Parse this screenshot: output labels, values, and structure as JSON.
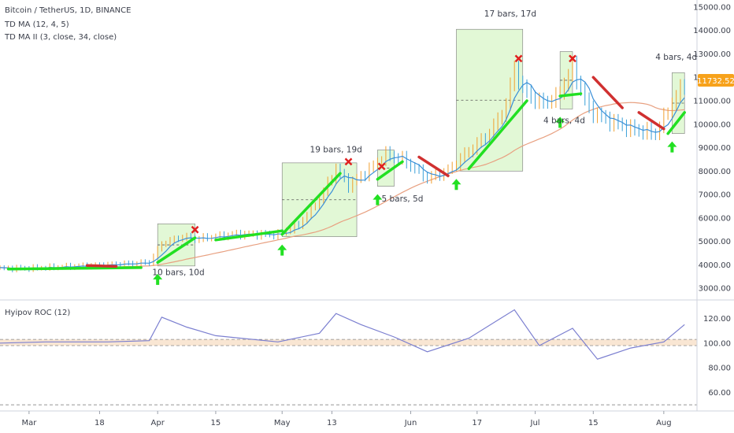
{
  "header": {
    "symbol": "Bitcoin / TetherUS, 1D, BINANCE",
    "indicator1": "TD MA (12, 4, 5)",
    "indicator2": "TD MA II (3, close, 34, close)",
    "lower_indicator": "Hyipov ROC (12)"
  },
  "colors": {
    "up_candle": "#f0a030",
    "down_candle": "#3aa0d8",
    "td_ma_up": "#22e022",
    "td_ma_down": "#d03030",
    "price_ma": "#3a8fd8",
    "slow_ma": "#e8a080",
    "box_fill": "#d8f5c8",
    "price_badge": "#f7a21b",
    "roc_line": "#7b7fd0",
    "roc_band": "#f6dcc0",
    "arrow_up": "#22e022",
    "sell_x": "#e02020"
  },
  "price_badge": "11732.52",
  "chart_data": [
    {
      "type": "line",
      "title": "Bitcoin / TetherUS, 1D, BINANCE",
      "x_axis": {
        "start": "2019-02-22",
        "end": "2019-08-09",
        "tick_labels": [
          "Mar",
          "18",
          "Apr",
          "15",
          "May",
          "13",
          "Jun",
          "17",
          "Jul",
          "15",
          "Aug"
        ],
        "tick_dates": [
          "2019-03-01",
          "2019-03-18",
          "2019-04-01",
          "2019-04-15",
          "2019-05-01",
          "2019-05-13",
          "2019-06-01",
          "2019-06-17",
          "2019-07-01",
          "2019-07-15",
          "2019-08-01"
        ]
      },
      "y_axis": {
        "range": [
          2500,
          15300
        ],
        "tick_labels": [
          "3000.00",
          "4000.00",
          "5000.00",
          "6000.00",
          "7000.00",
          "8000.00",
          "9000.00",
          "10000.00",
          "11000.00",
          "12000.00",
          "13000.00",
          "14000.00",
          "15000.00"
        ],
        "tick_values": [
          3000,
          4000,
          5000,
          6000,
          7000,
          8000,
          9000,
          10000,
          11000,
          12000,
          13000,
          14000,
          15000
        ]
      },
      "grid": false,
      "price_series": {
        "name": "Bitcoin / TetherUS",
        "x": [
          "2019-02-22",
          "2019-03-01",
          "2019-03-10",
          "2019-03-20",
          "2019-03-30",
          "2019-04-02",
          "2019-04-07",
          "2019-04-10",
          "2019-04-20",
          "2019-04-30",
          "2019-05-05",
          "2019-05-10",
          "2019-05-14",
          "2019-05-17",
          "2019-05-21",
          "2019-05-26",
          "2019-05-30",
          "2019-06-05",
          "2019-06-10",
          "2019-06-14",
          "2019-06-20",
          "2019-06-24",
          "2019-06-26",
          "2019-06-28",
          "2019-07-02",
          "2019-07-06",
          "2019-07-10",
          "2019-07-14",
          "2019-07-18",
          "2019-07-24",
          "2019-07-30",
          "2019-08-03",
          "2019-08-06"
        ],
        "values": [
          3850,
          3850,
          3920,
          4000,
          4100,
          4900,
          5200,
          5100,
          5300,
          5300,
          5700,
          6800,
          8100,
          7400,
          7900,
          8700,
          8500,
          7700,
          8000,
          8700,
          9600,
          10800,
          12400,
          11500,
          10900,
          11100,
          12400,
          10600,
          10200,
          9800,
          9600,
          10900,
          11732
        ]
      },
      "td_ma_up_segments": [
        {
          "x": [
            "2019-02-24",
            "2019-03-28"
          ],
          "values": [
            3820,
            3880
          ]
        },
        {
          "x": [
            "2019-04-01",
            "2019-04-10"
          ],
          "values": [
            4100,
            5150
          ]
        },
        {
          "x": [
            "2019-04-15",
            "2019-05-01"
          ],
          "values": [
            5060,
            5450
          ]
        },
        {
          "x": [
            "2019-05-01",
            "2019-05-15"
          ],
          "values": [
            5300,
            7900
          ]
        },
        {
          "x": [
            "2019-05-24",
            "2019-05-30"
          ],
          "values": [
            7650,
            8400
          ]
        },
        {
          "x": [
            "2019-06-15",
            "2019-06-29"
          ],
          "values": [
            8100,
            11000
          ]
        },
        {
          "x": [
            "2019-07-07",
            "2019-07-12"
          ],
          "values": [
            11200,
            11300
          ]
        },
        {
          "x": [
            "2019-08-02",
            "2019-08-06"
          ],
          "values": [
            9600,
            10500
          ]
        }
      ],
      "td_ma_down_segments": [
        {
          "x": [
            "2019-03-15",
            "2019-03-22"
          ],
          "values": [
            3970,
            3930
          ]
        },
        {
          "x": [
            "2019-06-03",
            "2019-06-10"
          ],
          "values": [
            8600,
            7800
          ]
        },
        {
          "x": [
            "2019-07-15",
            "2019-07-22"
          ],
          "values": [
            12000,
            10700
          ]
        },
        {
          "x": [
            "2019-07-26",
            "2019-08-01"
          ],
          "values": [
            10500,
            9800
          ]
        }
      ],
      "annotations": [
        {
          "text": "10 bars, 10d",
          "x": "2019-04-06",
          "y": 3550
        },
        {
          "text": "19 bars, 19d",
          "x": "2019-05-14",
          "y": 8800
        },
        {
          "text": "5 bars, 5d",
          "x": "2019-05-30",
          "y": 6700
        },
        {
          "text": "17 bars, 17d",
          "x": "2019-06-25",
          "y": 14600
        },
        {
          "text": "4 bars, 4d",
          "x": "2019-07-08",
          "y": 10050
        },
        {
          "text": "4 bars, 4d",
          "x": "2019-08-04",
          "y": 12750
        }
      ],
      "boxes": [
        {
          "x": [
            "2019-04-01",
            "2019-04-10"
          ],
          "y": [
            3950,
            5750
          ]
        },
        {
          "x": [
            "2019-05-01",
            "2019-05-19"
          ],
          "y": [
            5200,
            8350
          ]
        },
        {
          "x": [
            "2019-05-24",
            "2019-05-28"
          ],
          "y": [
            7350,
            8900
          ]
        },
        {
          "x": [
            "2019-06-12",
            "2019-06-28"
          ],
          "y": [
            8000,
            14050
          ]
        },
        {
          "x": [
            "2019-07-07",
            "2019-07-10"
          ],
          "y": [
            10650,
            13100
          ]
        },
        {
          "x": [
            "2019-08-03",
            "2019-08-06"
          ],
          "y": [
            9600,
            12200
          ]
        }
      ],
      "buy_arrows": [
        "2019-04-01",
        "2019-05-01",
        "2019-05-24",
        "2019-06-12",
        "2019-07-07",
        "2019-08-03"
      ],
      "sell_marks": [
        {
          "x": "2019-04-10",
          "y": 5500
        },
        {
          "x": "2019-05-17",
          "y": 8400
        },
        {
          "x": "2019-05-25",
          "y": 8200
        },
        {
          "x": "2019-06-27",
          "y": 12800
        },
        {
          "x": "2019-07-10",
          "y": 12800
        }
      ]
    },
    {
      "type": "line",
      "title": "Hyipov ROC (12)",
      "y_axis": {
        "range": [
          45,
          135
        ],
        "tick_labels": [
          "60.00",
          "80.00",
          "100.00",
          "120.00"
        ],
        "tick_values": [
          60,
          80,
          100,
          120
        ]
      },
      "band": [
        98,
        103
      ],
      "lower_dashed_level": 50,
      "roc_series": {
        "x": [
          "2019-02-22",
          "2019-03-05",
          "2019-03-20",
          "2019-03-30",
          "2019-04-02",
          "2019-04-08",
          "2019-04-15",
          "2019-04-30",
          "2019-05-10",
          "2019-05-14",
          "2019-05-20",
          "2019-05-28",
          "2019-06-05",
          "2019-06-15",
          "2019-06-26",
          "2019-07-02",
          "2019-07-10",
          "2019-07-16",
          "2019-07-24",
          "2019-08-01",
          "2019-08-06"
        ],
        "values": [
          100,
          101,
          101,
          102,
          121,
          113,
          106,
          101,
          108,
          124,
          115,
          105,
          93,
          104,
          127,
          98,
          112,
          87,
          96,
          101,
          115
        ]
      }
    }
  ]
}
